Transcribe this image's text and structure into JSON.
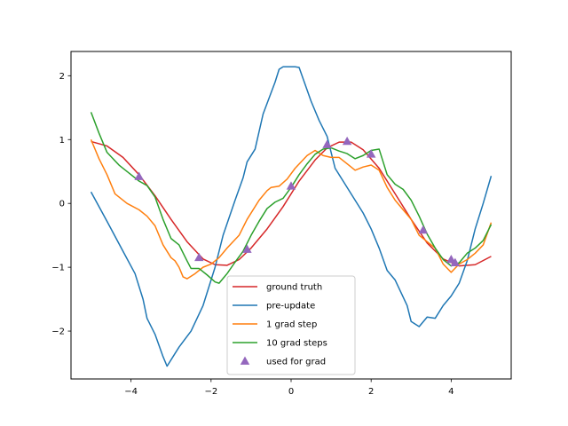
{
  "chart_data": {
    "type": "line",
    "title": "",
    "xlabel": "",
    "ylabel": "",
    "xlim": [
      -5.5,
      5.5
    ],
    "ylim": [
      -2.75,
      2.38
    ],
    "xticks": [
      -4,
      -2,
      0,
      2,
      4
    ],
    "yticks": [
      -2,
      -1,
      0,
      1,
      2
    ],
    "xtick_labels": [
      "−4",
      "−2",
      "0",
      "2",
      "4"
    ],
    "ytick_labels": [
      "−2",
      "−1",
      "0",
      "1",
      "2"
    ],
    "grid": false,
    "legend_position": "lower-center",
    "series": [
      {
        "name": "ground truth",
        "color": "#d62728",
        "points": [
          [
            -5.0,
            0.97
          ],
          [
            -4.6,
            0.9
          ],
          [
            -4.2,
            0.72
          ],
          [
            -3.8,
            0.45
          ],
          [
            -3.4,
            0.12
          ],
          [
            -3.0,
            -0.25
          ],
          [
            -2.6,
            -0.6
          ],
          [
            -2.2,
            -0.87
          ],
          [
            -1.9,
            -0.96
          ],
          [
            -1.6,
            -0.97
          ],
          [
            -1.3,
            -0.88
          ],
          [
            -1.0,
            -0.7
          ],
          [
            -0.6,
            -0.4
          ],
          [
            -0.2,
            -0.05
          ],
          [
            0.2,
            0.35
          ],
          [
            0.6,
            0.68
          ],
          [
            0.9,
            0.87
          ],
          [
            1.2,
            0.96
          ],
          [
            1.5,
            0.96
          ],
          [
            1.8,
            0.84
          ],
          [
            2.2,
            0.55
          ],
          [
            2.6,
            0.15
          ],
          [
            3.0,
            -0.25
          ],
          [
            3.4,
            -0.62
          ],
          [
            3.8,
            -0.87
          ],
          [
            4.2,
            -0.98
          ],
          [
            4.6,
            -0.96
          ],
          [
            5.0,
            -0.83
          ]
        ]
      },
      {
        "name": "pre-update",
        "color": "#1f77b4",
        "points": [
          [
            -5.0,
            0.18
          ],
          [
            -4.6,
            -0.28
          ],
          [
            -4.2,
            -0.75
          ],
          [
            -3.9,
            -1.1
          ],
          [
            -3.7,
            -1.5
          ],
          [
            -3.6,
            -1.8
          ],
          [
            -3.4,
            -2.05
          ],
          [
            -3.2,
            -2.4
          ],
          [
            -3.1,
            -2.55
          ],
          [
            -2.8,
            -2.25
          ],
          [
            -2.5,
            -2.0
          ],
          [
            -2.2,
            -1.6
          ],
          [
            -1.9,
            -1.0
          ],
          [
            -1.7,
            -0.5
          ],
          [
            -1.4,
            0.05
          ],
          [
            -1.2,
            0.4
          ],
          [
            -1.1,
            0.65
          ],
          [
            -0.9,
            0.85
          ],
          [
            -0.7,
            1.4
          ],
          [
            -0.4,
            1.9
          ],
          [
            -0.3,
            2.1
          ],
          [
            -0.2,
            2.14
          ],
          [
            0.1,
            2.14
          ],
          [
            0.2,
            2.13
          ],
          [
            0.5,
            1.6
          ],
          [
            0.7,
            1.3
          ],
          [
            0.9,
            1.05
          ],
          [
            1.1,
            0.55
          ],
          [
            1.3,
            0.35
          ],
          [
            1.6,
            0.05
          ],
          [
            1.8,
            -0.15
          ],
          [
            2.0,
            -0.4
          ],
          [
            2.2,
            -0.7
          ],
          [
            2.4,
            -1.05
          ],
          [
            2.6,
            -1.2
          ],
          [
            2.9,
            -1.6
          ],
          [
            3.0,
            -1.85
          ],
          [
            3.2,
            -1.93
          ],
          [
            3.4,
            -1.78
          ],
          [
            3.6,
            -1.8
          ],
          [
            3.8,
            -1.6
          ],
          [
            4.0,
            -1.45
          ],
          [
            4.2,
            -1.25
          ],
          [
            4.4,
            -0.9
          ],
          [
            4.6,
            -0.4
          ],
          [
            4.8,
            0.0
          ],
          [
            5.0,
            0.43
          ]
        ]
      },
      {
        "name": "1 grad step",
        "color": "#ff7f0e",
        "points": [
          [
            -5.0,
            1.0
          ],
          [
            -4.8,
            0.7
          ],
          [
            -4.6,
            0.45
          ],
          [
            -4.4,
            0.15
          ],
          [
            -4.1,
            0.0
          ],
          [
            -3.8,
            -0.1
          ],
          [
            -3.6,
            -0.2
          ],
          [
            -3.4,
            -0.35
          ],
          [
            -3.2,
            -0.65
          ],
          [
            -3.0,
            -0.85
          ],
          [
            -2.9,
            -0.9
          ],
          [
            -2.8,
            -1.0
          ],
          [
            -2.7,
            -1.15
          ],
          [
            -2.6,
            -1.18
          ],
          [
            -2.4,
            -1.1
          ],
          [
            -2.2,
            -1.0
          ],
          [
            -2.0,
            -0.95
          ],
          [
            -1.8,
            -0.85
          ],
          [
            -1.6,
            -0.7
          ],
          [
            -1.3,
            -0.5
          ],
          [
            -1.1,
            -0.25
          ],
          [
            -0.8,
            0.05
          ],
          [
            -0.6,
            0.2
          ],
          [
            -0.5,
            0.25
          ],
          [
            -0.3,
            0.27
          ],
          [
            -0.1,
            0.38
          ],
          [
            0.1,
            0.55
          ],
          [
            0.4,
            0.75
          ],
          [
            0.6,
            0.83
          ],
          [
            0.8,
            0.75
          ],
          [
            1.0,
            0.72
          ],
          [
            1.2,
            0.72
          ],
          [
            1.4,
            0.62
          ],
          [
            1.6,
            0.52
          ],
          [
            1.8,
            0.57
          ],
          [
            2.0,
            0.6
          ],
          [
            2.2,
            0.52
          ],
          [
            2.4,
            0.25
          ],
          [
            2.6,
            0.05
          ],
          [
            2.8,
            -0.1
          ],
          [
            3.0,
            -0.25
          ],
          [
            3.2,
            -0.5
          ],
          [
            3.4,
            -0.6
          ],
          [
            3.6,
            -0.7
          ],
          [
            3.8,
            -0.95
          ],
          [
            4.0,
            -1.08
          ],
          [
            4.2,
            -0.95
          ],
          [
            4.4,
            -0.88
          ],
          [
            4.6,
            -0.78
          ],
          [
            4.8,
            -0.65
          ],
          [
            5.0,
            -0.3
          ]
        ]
      },
      {
        "name": "10 grad steps",
        "color": "#2ca02c",
        "points": [
          [
            -5.0,
            1.43
          ],
          [
            -4.8,
            1.1
          ],
          [
            -4.6,
            0.8
          ],
          [
            -4.3,
            0.6
          ],
          [
            -4.0,
            0.45
          ],
          [
            -3.8,
            0.35
          ],
          [
            -3.6,
            0.28
          ],
          [
            -3.4,
            0.1
          ],
          [
            -3.2,
            -0.25
          ],
          [
            -3.0,
            -0.55
          ],
          [
            -2.8,
            -0.65
          ],
          [
            -2.6,
            -0.9
          ],
          [
            -2.5,
            -1.02
          ],
          [
            -2.3,
            -1.02
          ],
          [
            -2.1,
            -1.12
          ],
          [
            -1.9,
            -1.23
          ],
          [
            -1.8,
            -1.25
          ],
          [
            -1.6,
            -1.1
          ],
          [
            -1.4,
            -0.92
          ],
          [
            -1.2,
            -0.75
          ],
          [
            -1.0,
            -0.5
          ],
          [
            -0.8,
            -0.28
          ],
          [
            -0.6,
            -0.08
          ],
          [
            -0.4,
            0.02
          ],
          [
            -0.2,
            0.08
          ],
          [
            0.0,
            0.25
          ],
          [
            0.2,
            0.45
          ],
          [
            0.4,
            0.62
          ],
          [
            0.6,
            0.77
          ],
          [
            0.8,
            0.85
          ],
          [
            1.0,
            0.87
          ],
          [
            1.2,
            0.82
          ],
          [
            1.4,
            0.78
          ],
          [
            1.6,
            0.7
          ],
          [
            1.8,
            0.75
          ],
          [
            2.0,
            0.83
          ],
          [
            2.2,
            0.85
          ],
          [
            2.4,
            0.45
          ],
          [
            2.6,
            0.3
          ],
          [
            2.8,
            0.22
          ],
          [
            3.0,
            0.05
          ],
          [
            3.2,
            -0.2
          ],
          [
            3.4,
            -0.48
          ],
          [
            3.6,
            -0.7
          ],
          [
            3.8,
            -0.88
          ],
          [
            4.0,
            -0.98
          ],
          [
            4.2,
            -0.93
          ],
          [
            4.4,
            -0.78
          ],
          [
            4.6,
            -0.7
          ],
          [
            4.8,
            -0.58
          ],
          [
            5.0,
            -0.33
          ]
        ]
      }
    ],
    "scatter": {
      "name": "used for grad",
      "color": "#9467bd",
      "points": [
        [
          -3.8,
          0.42
        ],
        [
          -2.3,
          -0.85
        ],
        [
          -1.1,
          -0.72
        ],
        [
          0.0,
          0.27
        ],
        [
          0.9,
          0.92
        ],
        [
          1.4,
          0.97
        ],
        [
          2.0,
          0.77
        ],
        [
          3.3,
          -0.42
        ],
        [
          4.0,
          -0.88
        ],
        [
          4.1,
          -0.93
        ]
      ]
    }
  }
}
